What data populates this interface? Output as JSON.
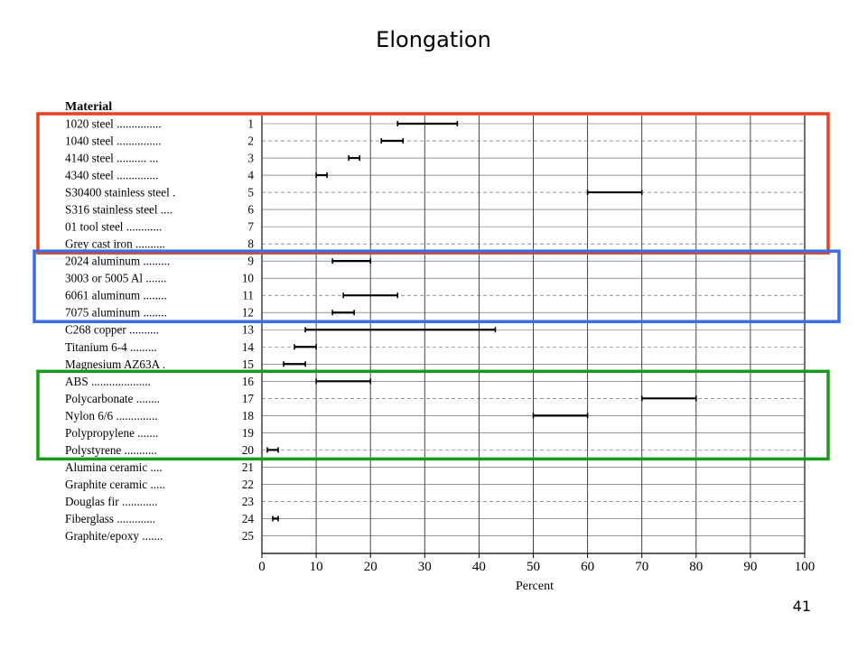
{
  "slide": {
    "title": "Elongation",
    "page_number": "41"
  },
  "chart_data": {
    "type": "bar",
    "orientation": "horizontal",
    "title": "Elongation",
    "xlabel": "Percent",
    "column_header": "Material",
    "xlim": [
      0,
      100
    ],
    "xticks": [
      0,
      10,
      20,
      30,
      40,
      50,
      60,
      70,
      80,
      90,
      100
    ],
    "grid": true,
    "series": [
      {
        "name": "",
        "rows": [
          {
            "label": "1020 steel ...............",
            "index": "1",
            "range": [
              25,
              36
            ]
          },
          {
            "label": "1040 steel ...............",
            "index": "2",
            "range": [
              22,
              26
            ]
          },
          {
            "label": "4140 steel ..........  ...",
            "index": "3",
            "range": [
              16,
              18
            ]
          },
          {
            "label": "4340 steel ..............",
            "index": "4",
            "range": [
              10,
              12
            ]
          },
          {
            "label": "S30400 stainless steel  .",
            "index": "5",
            "range": [
              60,
              70
            ]
          },
          {
            "label": "S316 stainless steel  ....",
            "index": "6",
            "range": null
          },
          {
            "label": "01 tool steel  ............",
            "index": "7",
            "range": null
          },
          {
            "label": "Grey cast iron  ..........",
            "index": "8",
            "range": null
          },
          {
            "label": "2024 aluminum  .........",
            "index": "9",
            "range": [
              13,
              20
            ]
          },
          {
            "label": "3003 or 5005 Al  .......",
            "index": "10",
            "range": null
          },
          {
            "label": "6061 aluminum  ........",
            "index": "11",
            "range": [
              15,
              25
            ]
          },
          {
            "label": "7075 aluminum  ........",
            "index": "12",
            "range": [
              13,
              17
            ]
          },
          {
            "label": "C268 copper  ..........",
            "index": "13",
            "range": [
              8,
              43
            ]
          },
          {
            "label": "Titanium 6-4  .........",
            "index": "14",
            "range": [
              6,
              10
            ]
          },
          {
            "label": "Magnesium AZ63A  .",
            "index": "15",
            "range": [
              4,
              8
            ]
          },
          {
            "label": "ABS  ....................",
            "index": "16",
            "range": [
              10,
              20
            ]
          },
          {
            "label": "Polycarbonate  ........",
            "index": "17",
            "range": [
              70,
              80
            ]
          },
          {
            "label": "Nylon 6/6  ..............",
            "index": "18",
            "range": [
              50,
              60
            ]
          },
          {
            "label": "Polypropylene  .......",
            "index": "19",
            "range": null
          },
          {
            "label": "Polystyrene  ...........",
            "index": "20",
            "range": [
              1,
              3
            ]
          },
          {
            "label": "Alumina ceramic  ....",
            "index": "21",
            "range": null
          },
          {
            "label": "Graphite ceramic  .....",
            "index": "22",
            "range": null
          },
          {
            "label": "Douglas fir  ............",
            "index": "23",
            "range": null
          },
          {
            "label": "Fiberglass  .............",
            "index": "24",
            "range": [
              2,
              3
            ]
          },
          {
            "label": "Graphite/epoxy  .......",
            "index": "25",
            "range": null
          }
        ]
      }
    ],
    "highlight_boxes": [
      {
        "label": "",
        "rows": [
          1,
          8
        ],
        "color": "#e8401c"
      },
      {
        "label": "",
        "rows": [
          9,
          12
        ],
        "color": "#3a6ee8"
      },
      {
        "label": "",
        "rows": [
          16,
          20
        ],
        "color": "#1a9a1a"
      }
    ]
  }
}
